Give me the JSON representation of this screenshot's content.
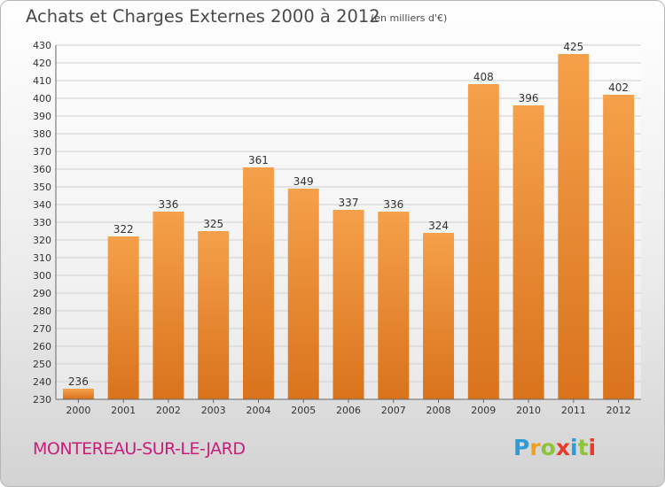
{
  "header": {
    "title": "Achats et Charges Externes 2000 à 2012",
    "unit": "(en milliers d'€)"
  },
  "footer": {
    "commune": "MONTEREAU-SUR-LE-JARD",
    "logo": "Proxiti"
  },
  "colors": {
    "bar_top": "#f5a04a",
    "bar_bottom": "#d9731c",
    "grid": "#d0d0d0",
    "commune_text": "#c81e7a",
    "logo_letters": [
      "#2e9bd6",
      "#f0a020",
      "#8dc43a",
      "#e8392b",
      "#2e9bd6",
      "#8dc43a",
      "#e8392b"
    ]
  },
  "chart_data": {
    "type": "bar",
    "title": "Achats et Charges Externes 2000 à 2012",
    "subtitle": "(en milliers d'€)",
    "categories": [
      "2000",
      "2001",
      "2002",
      "2003",
      "2004",
      "2005",
      "2006",
      "2007",
      "2008",
      "2009",
      "2010",
      "2011",
      "2012"
    ],
    "values": [
      236,
      322,
      336,
      325,
      361,
      349,
      337,
      336,
      324,
      408,
      396,
      425,
      402
    ],
    "ylim": [
      230,
      430
    ],
    "yticks": [
      230,
      240,
      250,
      260,
      270,
      280,
      290,
      300,
      310,
      320,
      330,
      340,
      350,
      360,
      370,
      380,
      390,
      400,
      410,
      420,
      430
    ],
    "xlabel": "",
    "ylabel": "",
    "grid": true,
    "legend": "none"
  }
}
